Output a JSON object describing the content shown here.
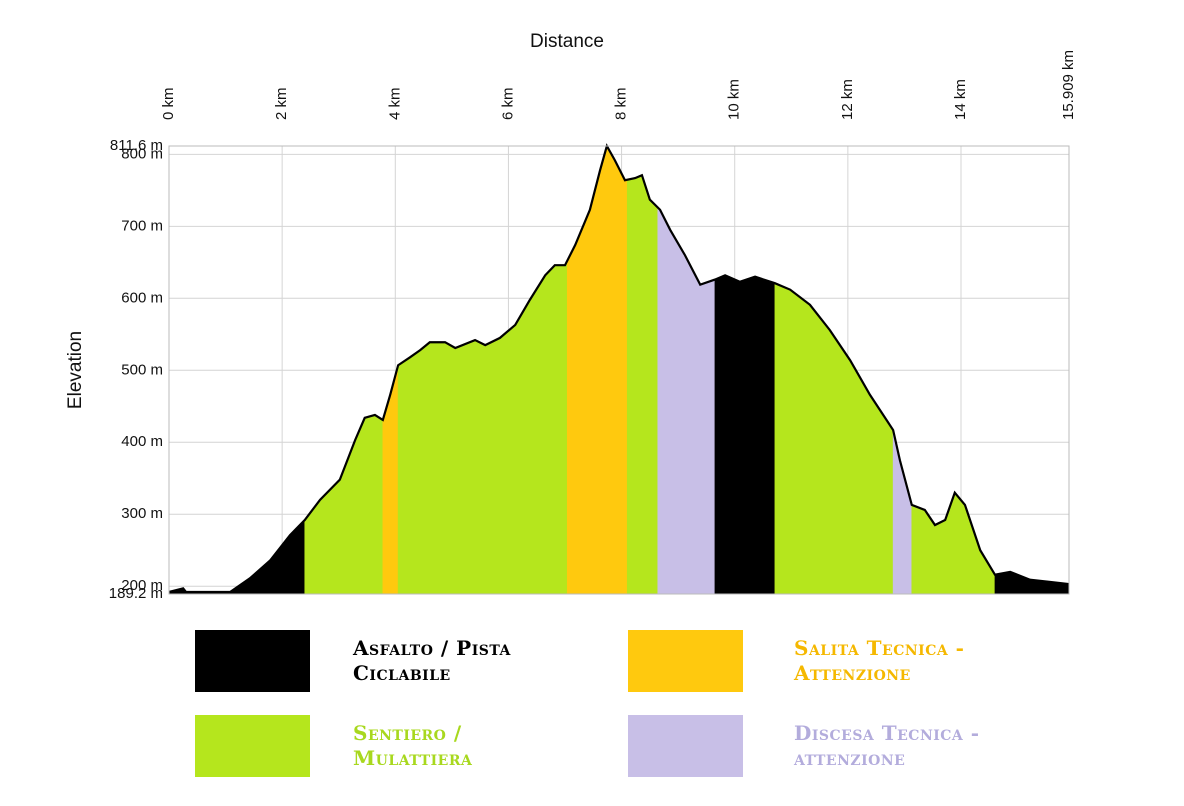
{
  "chart_data": {
    "type": "area",
    "title": "Distance",
    "y_label": "Elevation",
    "x": [
      0,
      0.25,
      0.3,
      1.08,
      1.43,
      1.79,
      2.14,
      2.4,
      2.67,
      3.02,
      3.29,
      3.46,
      3.64,
      3.78,
      3.91,
      4.05,
      4.26,
      4.44,
      4.61,
      4.88,
      5.06,
      5.41,
      5.59,
      5.85,
      6.12,
      6.38,
      6.65,
      6.82,
      7.0,
      7.18,
      7.44,
      7.62,
      7.74,
      7.88,
      8.06,
      8.24,
      8.36,
      8.5,
      8.68,
      8.86,
      9.12,
      9.39,
      9.65,
      9.83,
      10.09,
      10.36,
      10.71,
      10.98,
      11.33,
      11.68,
      12.04,
      12.39,
      12.8,
      12.92,
      13.13,
      13.36,
      13.54,
      13.72,
      13.89,
      14.07,
      14.34,
      14.6,
      14.87,
      15.22,
      15.58,
      15.909
    ],
    "values": [
      192,
      197,
      192,
      192,
      211,
      236,
      271,
      292,
      320,
      348,
      403,
      434,
      438,
      431,
      466,
      507,
      518,
      528,
      539,
      539,
      531,
      542,
      535,
      545,
      563,
      598,
      632,
      646,
      646,
      674,
      723,
      778,
      811.6,
      792,
      764,
      767,
      771,
      737,
      723,
      695,
      660,
      619,
      626,
      632,
      623,
      630,
      621,
      612,
      591,
      556,
      514,
      466,
      417,
      375,
      313,
      306,
      285,
      292,
      330,
      313,
      250,
      216,
      220,
      209,
      206,
      203
    ],
    "surfaces": [
      {
        "name": "Asfalto / Pista Ciclabile",
        "color": "#000000",
        "text_color": "#000000"
      },
      {
        "name": "Salita Tecnica - Attenzione",
        "color": "#ffc90e",
        "text_color": "#f5b800"
      },
      {
        "name": "Sentiero / Mulattiera",
        "color": "#b5e61d",
        "text_color": "#a8d81e"
      },
      {
        "name": "Discesa Tecnica - attenzione",
        "color": "#c8bfe7",
        "text_color": "#b3acdc"
      }
    ],
    "segments": [
      {
        "surface": 0,
        "from": 0,
        "to": 2.4
      },
      {
        "surface": 2,
        "from": 2.4,
        "to": 3.78
      },
      {
        "surface": 1,
        "from": 3.78,
        "to": 4.05
      },
      {
        "surface": 2,
        "from": 4.05,
        "to": 7.04
      },
      {
        "surface": 1,
        "from": 7.04,
        "to": 8.1
      },
      {
        "surface": 2,
        "from": 8.1,
        "to": 8.64
      },
      {
        "surface": 3,
        "from": 8.64,
        "to": 9.65
      },
      {
        "surface": 0,
        "from": 9.65,
        "to": 10.71
      },
      {
        "surface": 2,
        "from": 10.71,
        "to": 12.8
      },
      {
        "surface": 3,
        "from": 12.8,
        "to": 13.13
      },
      {
        "surface": 2,
        "from": 13.13,
        "to": 14.6
      },
      {
        "surface": 0,
        "from": 14.6,
        "to": 15.909
      }
    ],
    "xlim": [
      0,
      15.909
    ],
    "xticks": [
      {
        "value": 0,
        "label": "0 km"
      },
      {
        "value": 2,
        "label": "2 km"
      },
      {
        "value": 4,
        "label": "4 km"
      },
      {
        "value": 6,
        "label": "6 km"
      },
      {
        "value": 8,
        "label": "8 km"
      },
      {
        "value": 10,
        "label": "10 km"
      },
      {
        "value": 12,
        "label": "12 km"
      },
      {
        "value": 14,
        "label": "14 km"
      },
      {
        "value": 15.909,
        "label": "15.909 km"
      }
    ],
    "ylim": [
      189.2,
      811.6
    ],
    "yticks": [
      {
        "value": 189.2,
        "label": "189.2 m"
      },
      {
        "value": 200,
        "label": "200 m"
      },
      {
        "value": 300,
        "label": "300 m"
      },
      {
        "value": 400,
        "label": "400 m"
      },
      {
        "value": 500,
        "label": "500 m"
      },
      {
        "value": 600,
        "label": "600 m"
      },
      {
        "value": 700,
        "label": "700 m"
      },
      {
        "value": 800,
        "label": "800 m"
      },
      {
        "value": 811.6,
        "label": "811.6 m"
      }
    ],
    "grid": true,
    "line_color": "#000000"
  }
}
